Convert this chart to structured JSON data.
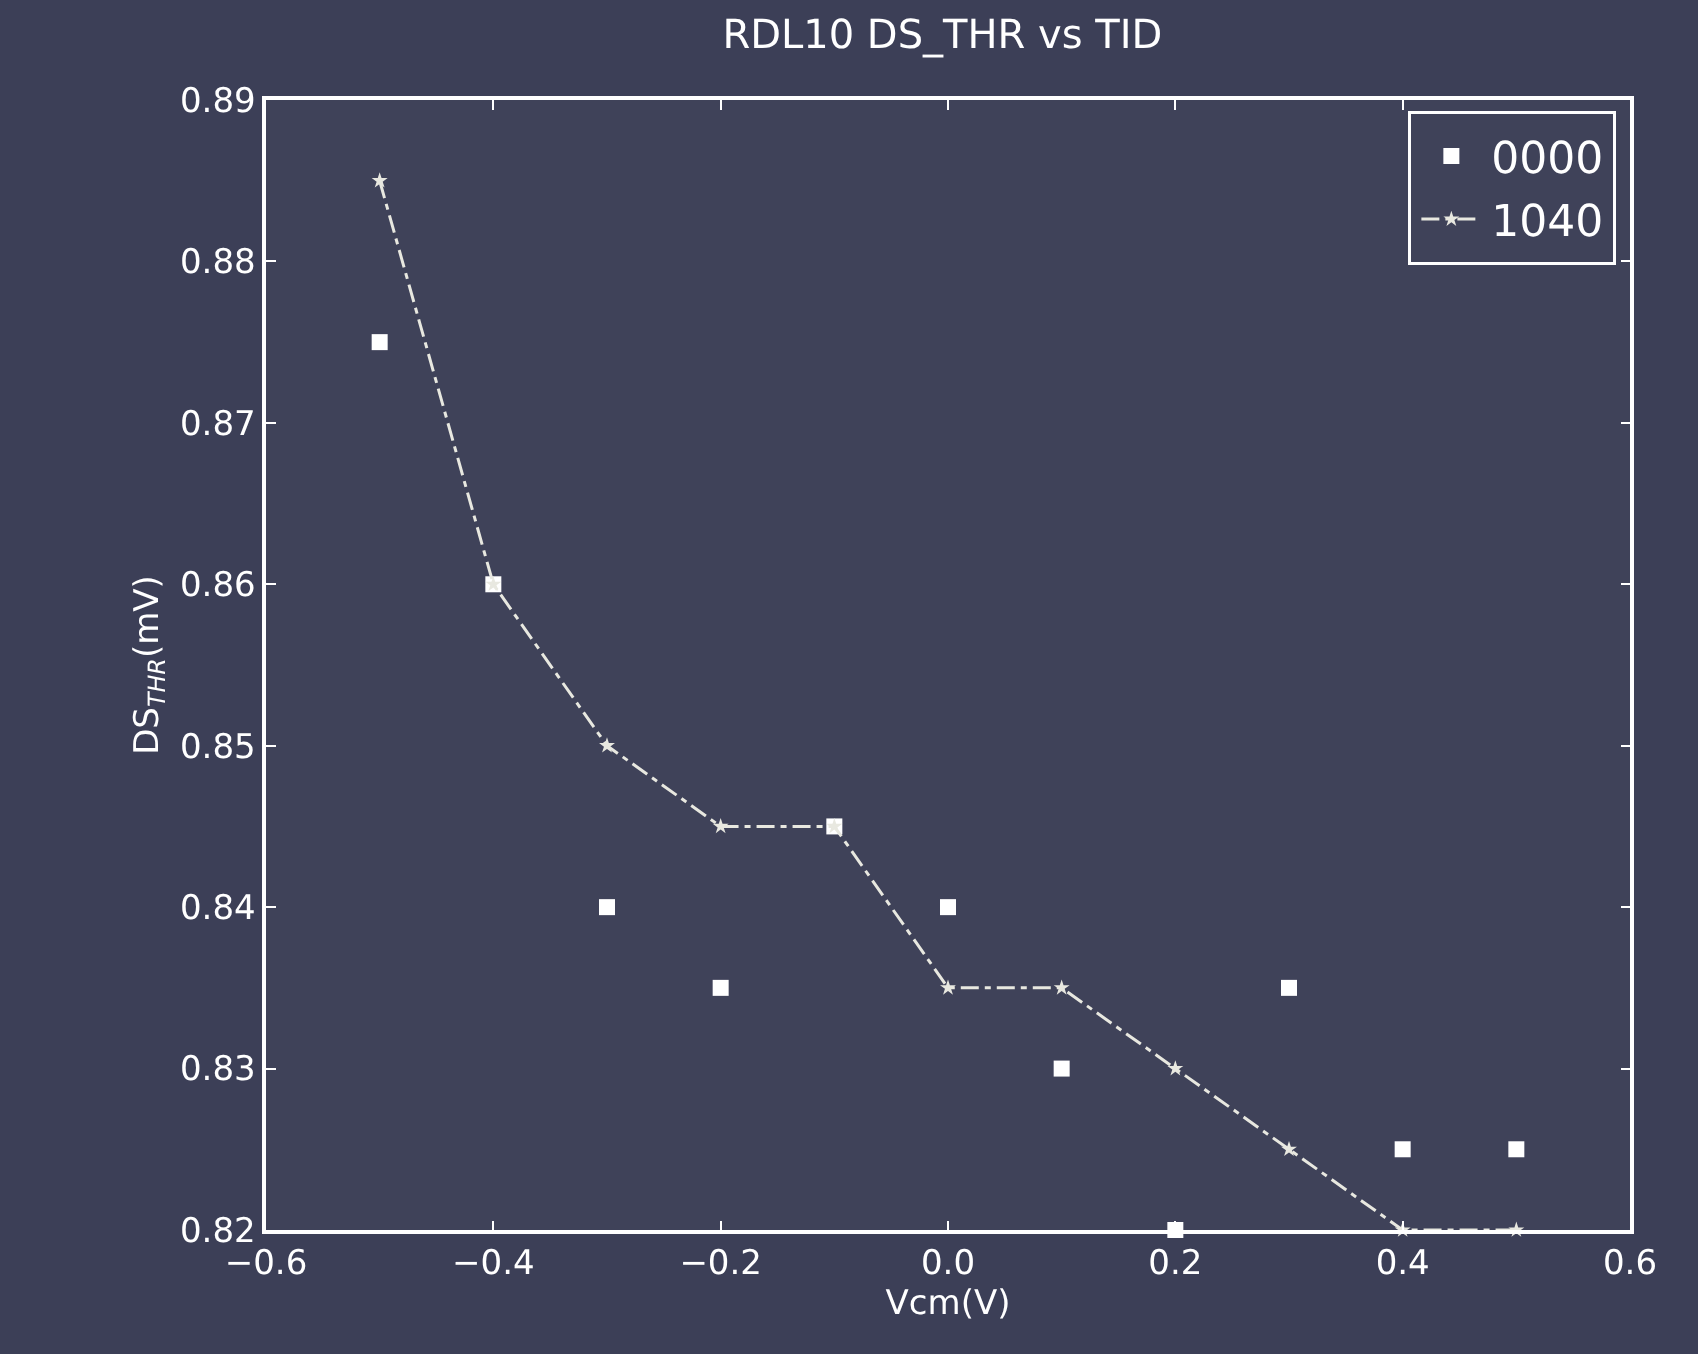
{
  "chart_data": {
    "type": "scatter",
    "title": "RDL10 DS_THR vs TID",
    "xlabel": "Vcm(V)",
    "ylabel": "DS$_{THR}$(mV)",
    "x": [
      -0.5,
      -0.4,
      -0.3,
      -0.2,
      -0.1,
      0.0,
      0.1,
      0.2,
      0.3,
      0.4,
      0.5
    ],
    "series": [
      {
        "name": "0000",
        "marker": "square",
        "color": "#ffffff",
        "values": [
          0.875,
          0.86,
          0.84,
          0.835,
          0.845,
          0.84,
          0.83,
          0.82,
          0.835,
          0.825,
          0.825
        ]
      },
      {
        "name": "1040",
        "type": "line",
        "marker": "star",
        "line_style": "dashed",
        "color": "#e8e8e0",
        "values": [
          0.885,
          0.86,
          0.85,
          0.845,
          0.845,
          0.835,
          0.835,
          0.83,
          0.825,
          0.82,
          0.82
        ]
      }
    ],
    "xlim": [
      -0.6,
      0.6
    ],
    "xticks": [
      {
        "value": -0.6,
        "label": "−0.6"
      },
      {
        "value": -0.4,
        "label": "−0.4"
      },
      {
        "value": -0.2,
        "label": "−0.2"
      },
      {
        "value": 0.0,
        "label": "0.0"
      },
      {
        "value": 0.2,
        "label": "0.2"
      },
      {
        "value": 0.4,
        "label": "0.4"
      },
      {
        "value": 0.6,
        "label": "0.6"
      }
    ],
    "ylim": [
      0.82,
      0.89
    ],
    "yticks": [
      0.82,
      0.83,
      0.84,
      0.85,
      0.86,
      0.87,
      0.88,
      0.89
    ],
    "grid": false,
    "legend": "top right"
  }
}
